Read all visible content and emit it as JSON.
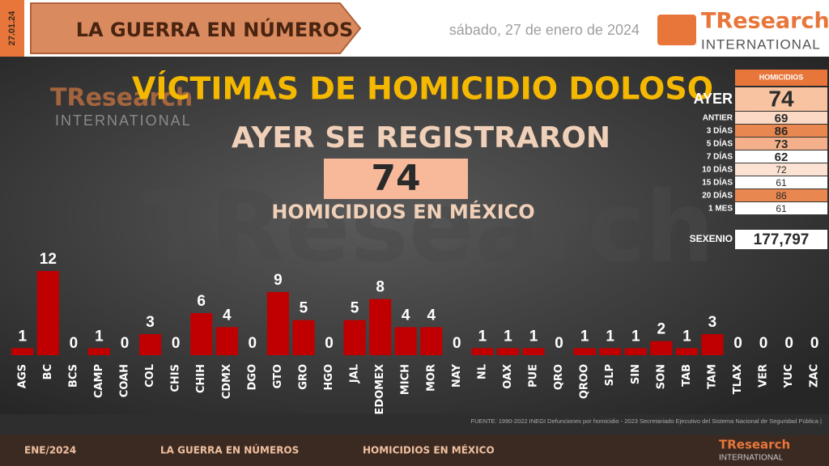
{
  "header": {
    "short_date": "27.01.24",
    "section": "LA GUERRA EN NÚMEROS",
    "date": "sábado, 27 de enero de 2024",
    "logo": "TResearch",
    "logo_sub": "INTERNATIONAL"
  },
  "summary": {
    "title": "VÍCTIMAS DE HOMICIDIO DOLOSO",
    "subtitle": "AYER SE REGISTRARON",
    "total": 74,
    "caption": "HOMICIDIOS EN MÉXICO"
  },
  "table": {
    "header": "HOMICIDIOS",
    "rows": [
      {
        "label": "AYER",
        "value": 74,
        "color": "#f8c3a0"
      },
      {
        "label": "ANTIER",
        "value": 69,
        "color": "#fbd9c4"
      },
      {
        "label": "3 DÍAS",
        "value": 86,
        "color": "#e8874f"
      },
      {
        "label": "5 DÍAS",
        "value": 73,
        "color": "#f4b08a"
      },
      {
        "label": "7 DÍAS",
        "value": 62,
        "color": "#ffffff"
      },
      {
        "label": "10 DÍAS",
        "value": 72,
        "color": "#fbe2d2"
      },
      {
        "label": "15 DÍAS",
        "value": 61,
        "color": "#ffffff"
      },
      {
        "label": "20 DÍAS",
        "value": 86,
        "color": "#e8874f"
      },
      {
        "label": "1 MES",
        "value": 61,
        "color": "#ffffff"
      }
    ],
    "sexenio_label": "SEXENIO",
    "sexenio_value": "177,797"
  },
  "chart_data": {
    "type": "bar",
    "color": "#c00000",
    "categories": [
      "AGS",
      "BC",
      "BCS",
      "CAMP",
      "COAH",
      "COL",
      "CHIS",
      "CHIH",
      "CDMX",
      "DGO",
      "GTO",
      "GRO",
      "HGO",
      "JAL",
      "EDOMEX",
      "MICH",
      "MOR",
      "NAY",
      "NL",
      "OAX",
      "PUE",
      "QRO",
      "QROO",
      "SLP",
      "SIN",
      "SON",
      "TAB",
      "TAM",
      "TLAX",
      "VER",
      "YUC",
      "ZAC"
    ],
    "values": [
      1,
      12,
      0,
      1,
      0,
      3,
      0,
      6,
      4,
      0,
      9,
      5,
      0,
      5,
      8,
      4,
      4,
      0,
      1,
      1,
      1,
      0,
      1,
      1,
      1,
      2,
      1,
      3,
      0,
      0,
      0,
      0
    ]
  },
  "footer": {
    "source": "FUENTE: 1990-2022 INEGI Defunciones por homicidio - 2023 Secretariado Ejecutivo del Sistema Nacional de Seguridad Pública |",
    "month": "ENE/2024",
    "section": "LA GUERRA EN NÚMEROS",
    "topic": "HOMICIDIOS EN MÉXICO"
  }
}
